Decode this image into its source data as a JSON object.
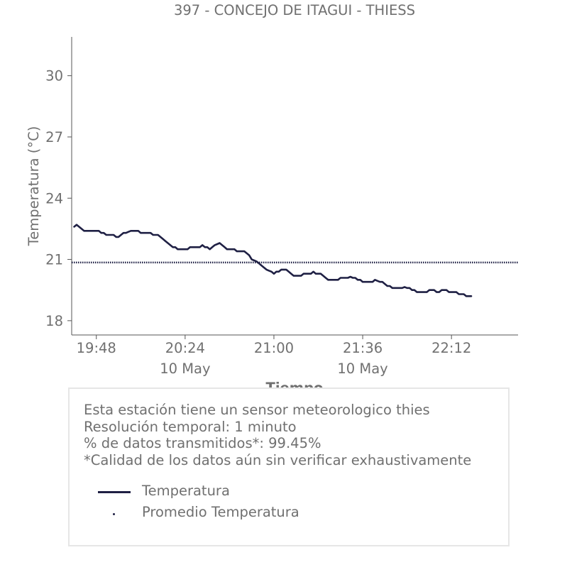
{
  "chart_data": {
    "type": "line",
    "title": "397 - CONCEJO DE ITAGUI - THIESS",
    "xlabel": "Tiempo",
    "ylabel": "Temperatura (°C)",
    "x_start": "19:39",
    "x_end": "22:39",
    "x_range_minutes": [
      -1,
      180
    ],
    "ylim": [
      17.3,
      31.9
    ],
    "y_ticks": [
      18,
      21,
      24,
      27,
      30
    ],
    "x_ticks": [
      {
        "label": "19:48",
        "minute": 9,
        "date": ""
      },
      {
        "label": "20:24",
        "minute": 45,
        "date": "10 May"
      },
      {
        "label": "21:00",
        "minute": 81,
        "date": ""
      },
      {
        "label": "21:36",
        "minute": 117,
        "date": "10 May"
      },
      {
        "label": "22:12",
        "minute": 153,
        "date": ""
      }
    ],
    "series": [
      {
        "name": "Temperatura",
        "color": "#1f2044",
        "style": "solid",
        "points": [
          [
            0,
            22.6
          ],
          [
            1,
            22.7
          ],
          [
            2,
            22.6
          ],
          [
            3,
            22.5
          ],
          [
            4,
            22.4
          ],
          [
            6,
            22.4
          ],
          [
            8,
            22.4
          ],
          [
            10,
            22.4
          ],
          [
            11,
            22.3
          ],
          [
            12,
            22.3
          ],
          [
            13,
            22.2
          ],
          [
            14,
            22.2
          ],
          [
            16,
            22.2
          ],
          [
            17,
            22.1
          ],
          [
            18,
            22.1
          ],
          [
            19,
            22.2
          ],
          [
            20,
            22.3
          ],
          [
            21,
            22.3
          ],
          [
            22,
            22.35
          ],
          [
            23,
            22.4
          ],
          [
            24,
            22.4
          ],
          [
            25,
            22.4
          ],
          [
            26,
            22.4
          ],
          [
            27,
            22.3
          ],
          [
            29,
            22.3
          ],
          [
            31,
            22.3
          ],
          [
            32,
            22.2
          ],
          [
            34,
            22.2
          ],
          [
            35,
            22.1
          ],
          [
            36,
            22.0
          ],
          [
            37,
            21.9
          ],
          [
            38,
            21.8
          ],
          [
            39,
            21.7
          ],
          [
            40,
            21.6
          ],
          [
            41,
            21.6
          ],
          [
            42,
            21.5
          ],
          [
            43,
            21.5
          ],
          [
            45,
            21.5
          ],
          [
            46,
            21.5
          ],
          [
            47,
            21.6
          ],
          [
            48,
            21.6
          ],
          [
            50,
            21.6
          ],
          [
            51,
            21.6
          ],
          [
            52,
            21.7
          ],
          [
            53,
            21.6
          ],
          [
            54,
            21.6
          ],
          [
            55,
            21.5
          ],
          [
            56,
            21.6
          ],
          [
            57,
            21.7
          ],
          [
            58,
            21.75
          ],
          [
            59,
            21.8
          ],
          [
            60,
            21.7
          ],
          [
            61,
            21.6
          ],
          [
            62,
            21.5
          ],
          [
            63,
            21.5
          ],
          [
            65,
            21.5
          ],
          [
            66,
            21.4
          ],
          [
            67,
            21.4
          ],
          [
            69,
            21.4
          ],
          [
            70,
            21.3
          ],
          [
            71,
            21.2
          ],
          [
            72,
            21.0
          ],
          [
            73,
            20.95
          ],
          [
            74,
            20.9
          ],
          [
            75,
            20.8
          ],
          [
            76,
            20.7
          ],
          [
            77,
            20.6
          ],
          [
            78,
            20.5
          ],
          [
            79,
            20.45
          ],
          [
            80,
            20.4
          ],
          [
            81,
            20.3
          ],
          [
            82,
            20.4
          ],
          [
            83,
            20.4
          ],
          [
            84,
            20.5
          ],
          [
            85,
            20.5
          ],
          [
            86,
            20.5
          ],
          [
            87,
            20.4
          ],
          [
            88,
            20.3
          ],
          [
            89,
            20.2
          ],
          [
            90,
            20.2
          ],
          [
            92,
            20.2
          ],
          [
            93,
            20.3
          ],
          [
            94,
            20.3
          ],
          [
            96,
            20.3
          ],
          [
            97,
            20.4
          ],
          [
            98,
            20.3
          ],
          [
            99,
            20.3
          ],
          [
            100,
            20.3
          ],
          [
            101,
            20.2
          ],
          [
            102,
            20.1
          ],
          [
            103,
            20.0
          ],
          [
            104,
            20.0
          ],
          [
            105,
            20.0
          ],
          [
            106,
            20.0
          ],
          [
            107,
            20.0
          ],
          [
            108,
            20.1
          ],
          [
            109,
            20.1
          ],
          [
            110,
            20.1
          ],
          [
            111,
            20.1
          ],
          [
            112,
            20.15
          ],
          [
            113,
            20.1
          ],
          [
            114,
            20.1
          ],
          [
            115,
            20.0
          ],
          [
            116,
            20.0
          ],
          [
            117,
            19.9
          ],
          [
            118,
            19.9
          ],
          [
            119,
            19.9
          ],
          [
            120,
            19.9
          ],
          [
            121,
            19.9
          ],
          [
            122,
            20.0
          ],
          [
            123,
            19.95
          ],
          [
            124,
            19.9
          ],
          [
            125,
            19.9
          ],
          [
            126,
            19.8
          ],
          [
            127,
            19.7
          ],
          [
            128,
            19.7
          ],
          [
            129,
            19.6
          ],
          [
            130,
            19.6
          ],
          [
            132,
            19.6
          ],
          [
            133,
            19.6
          ],
          [
            134,
            19.65
          ],
          [
            135,
            19.6
          ],
          [
            136,
            19.6
          ],
          [
            137,
            19.5
          ],
          [
            138,
            19.5
          ],
          [
            139,
            19.4
          ],
          [
            140,
            19.4
          ],
          [
            142,
            19.4
          ],
          [
            143,
            19.4
          ],
          [
            144,
            19.5
          ],
          [
            145,
            19.5
          ],
          [
            146,
            19.5
          ],
          [
            147,
            19.4
          ],
          [
            148,
            19.4
          ],
          [
            149,
            19.5
          ],
          [
            150,
            19.5
          ],
          [
            151,
            19.5
          ],
          [
            152,
            19.4
          ],
          [
            153,
            19.4
          ],
          [
            154,
            19.4
          ],
          [
            155,
            19.4
          ],
          [
            156,
            19.3
          ],
          [
            157,
            19.3
          ],
          [
            158,
            19.3
          ],
          [
            159,
            19.2
          ],
          [
            160,
            19.2
          ],
          [
            161,
            19.2
          ]
        ]
      },
      {
        "name": "Promedio Temperatura",
        "color": "#1f2044",
        "style": "dotted",
        "value": 20.85
      }
    ]
  },
  "info": {
    "line1": "Esta estación tiene un sensor meteorologico thies",
    "line2": "Resolución temporal: 1 minuto",
    "line3": "% de datos transmitidos*: 99.45%",
    "line4": "*Calidad de los datos aún sin verificar exhaustivamente"
  },
  "legend": {
    "item1": "Temperatura",
    "item2": "Promedio Temperatura"
  }
}
